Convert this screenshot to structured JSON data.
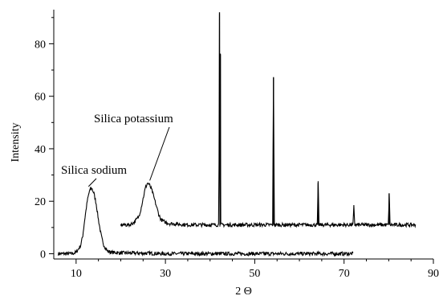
{
  "chart_data": {
    "type": "line",
    "title": "",
    "xlabel": "2 Θ",
    "ylabel": "Intensity",
    "xlim": [
      5,
      90
    ],
    "ylim": [
      -2,
      93
    ],
    "xticks": [
      10,
      30,
      50,
      70,
      90
    ],
    "yticks": [
      0,
      20,
      40,
      60,
      80
    ],
    "grid": false,
    "legend": "none",
    "series": [
      {
        "x": [
          6,
          9,
          10,
          11,
          11.5,
          12,
          12.5,
          13,
          13.5,
          14,
          14.5,
          15,
          15.5,
          16,
          17,
          18,
          20,
          25,
          30,
          40,
          50,
          60,
          72
        ],
        "y": [
          0,
          0,
          0.5,
          3,
          7,
          14,
          20,
          24,
          25,
          23,
          19,
          13,
          8,
          4,
          1,
          0.5,
          0.3,
          0.2,
          0,
          0,
          0,
          0,
          0
        ],
        "color": "#000000",
        "noise": 0.7
      },
      {
        "x": [
          20,
          22,
          23,
          24,
          24.5,
          25,
          25.5,
          26,
          26.5,
          27,
          27.5,
          28,
          28.5,
          29,
          30,
          31,
          35,
          40,
          41.9,
          42.0,
          42.1,
          42.2,
          42.3,
          42.4,
          42.5,
          43,
          50,
          54.0,
          54.2,
          54.4,
          54.6,
          55,
          60,
          64.0,
          64.2,
          64.4,
          65,
          72.0,
          72.2,
          72.4,
          73,
          79.9,
          80.1,
          80.3,
          81,
          86
        ],
        "y": [
          11,
          11,
          12,
          14,
          17,
          21,
          25,
          27,
          26,
          24,
          21,
          18,
          15,
          13,
          12,
          11.5,
          11,
          11,
          11,
          35,
          92,
          11,
          76,
          11,
          11,
          11,
          11,
          11,
          67,
          11,
          11,
          11,
          11,
          11,
          27,
          11,
          11,
          11,
          18,
          11,
          11,
          11,
          23,
          11,
          11,
          11
        ],
        "color": "#000000",
        "noise": 0.7
      }
    ],
    "annotations": [
      {
        "text": "Silica sodium",
        "x": 13.5,
        "y": 25
      },
      {
        "text": "Silica potassium",
        "x": 26.5,
        "y": 27
      }
    ]
  }
}
